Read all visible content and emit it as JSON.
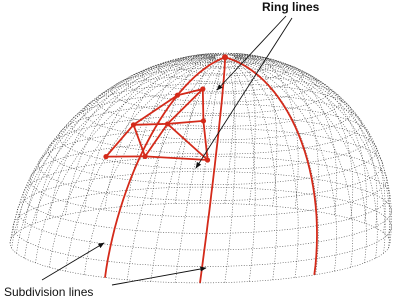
{
  "labels": {
    "ring": "Ring lines",
    "subdivision": "Subdivision lines"
  }
}
